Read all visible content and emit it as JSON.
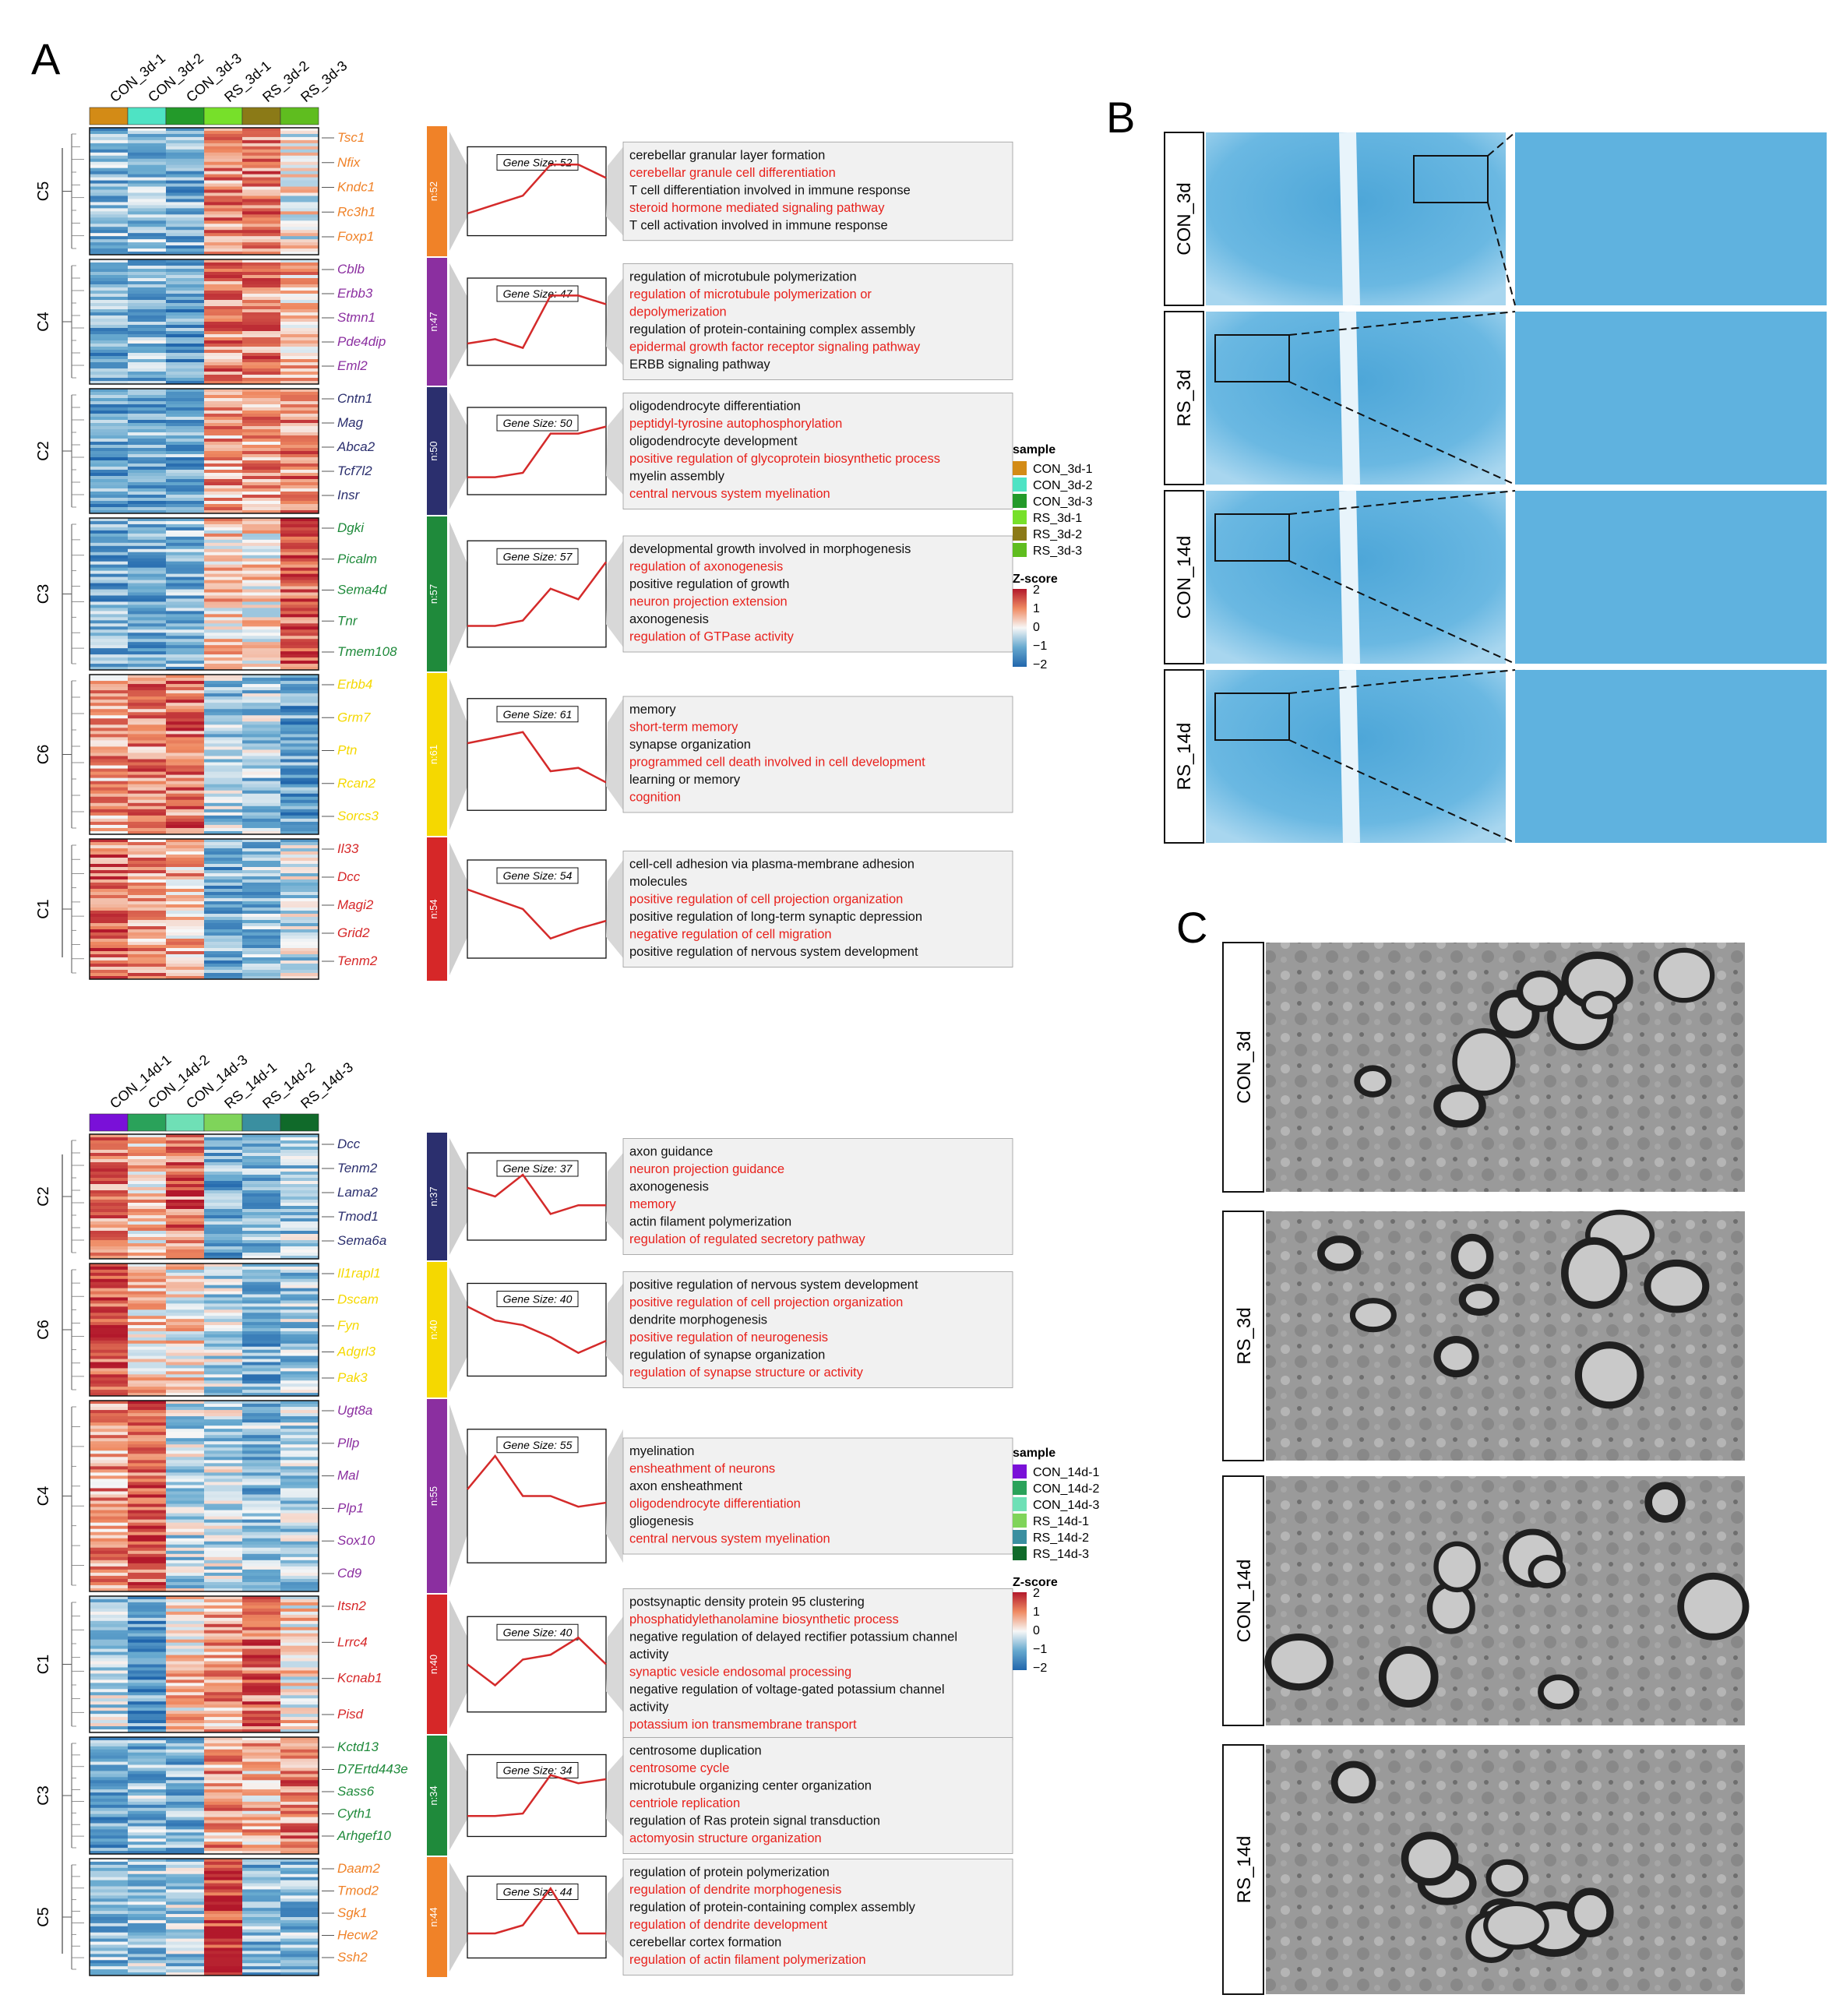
{
  "panels": {
    "A": "A",
    "B": "B",
    "C": "C"
  },
  "colors": {
    "C1": "#d62728",
    "C2": "#2b2f6e",
    "C3": "#1f8a3b",
    "C4": "#8b2fa0",
    "C5": "#f08228",
    "C6": "#f5d800",
    "go_red": "#e8211c",
    "go_black": "#111111"
  },
  "icons": {
    "panel_B": "luxol-fast-blue-histology-image",
    "panel_C": "electron-micrograph-image"
  },
  "top": {
    "columns": [
      "CON_3d-1",
      "CON_3d-2",
      "CON_3d-3",
      "RS_3d-1",
      "RS_3d-2",
      "RS_3d-3"
    ],
    "column_colors": [
      "#d38b16",
      "#4ee3c4",
      "#239a2a",
      "#77e02a",
      "#8b7a17",
      "#5fbd1f"
    ],
    "clusters": [
      {
        "id": "C5",
        "n": "n:52",
        "gene_size": "Gene Size: 52",
        "color": "#f08228",
        "genes": [
          "Tsc1",
          "Nfix",
          "Kndc1",
          "Rc3h1",
          "Foxp1"
        ],
        "profile": [
          0.25,
          0.35,
          0.45,
          0.8,
          0.8,
          0.65
        ],
        "rows": [
          0.3,
          0.3,
          0.25,
          0.75,
          0.75,
          0.5
        ],
        "go": [
          [
            "cerebellar granular layer formation",
            0
          ],
          [
            "cerebellar granule cell differentiation",
            1
          ],
          [
            "T cell differentiation involved in immune response",
            0
          ],
          [
            "steroid hormone mediated signaling pathway",
            1
          ],
          [
            "T cell activation involved in immune response",
            0
          ]
        ]
      },
      {
        "id": "C4",
        "n": "n:47",
        "gene_size": "Gene Size: 47",
        "color": "#8b2fa0",
        "genes": [
          "Cblb",
          "Erbb3",
          "Stmn1",
          "Pde4dip",
          "Eml2"
        ],
        "profile": [
          0.25,
          0.3,
          0.2,
          0.8,
          0.8,
          0.7
        ],
        "rows": [
          0.25,
          0.3,
          0.2,
          0.75,
          0.75,
          0.65
        ],
        "go": [
          [
            "regulation of microtubule polymerization",
            0
          ],
          [
            "regulation of microtubule polymerization or",
            1
          ],
          [
            "depolymerization",
            1
          ],
          [
            "regulation of protein-containing complex assembly",
            0
          ],
          [
            "epidermal growth factor receptor signaling pathway",
            1
          ],
          [
            "ERBB signaling pathway",
            0
          ]
        ]
      },
      {
        "id": "C2",
        "n": "n:50",
        "gene_size": "Gene Size: 50",
        "color": "#2b2f6e",
        "genes": [
          "Cntn1",
          "Mag",
          "Abca2",
          "Tcf7l2",
          "Insr"
        ],
        "profile": [
          0.2,
          0.2,
          0.25,
          0.7,
          0.7,
          0.78
        ],
        "rows": [
          0.2,
          0.25,
          0.25,
          0.7,
          0.7,
          0.75
        ],
        "go": [
          [
            "oligodendrocyte differentiation",
            0
          ],
          [
            "peptidyl-tyrosine autophosphorylation",
            1
          ],
          [
            "oligodendrocyte development",
            0
          ],
          [
            "positive regulation of glycoprotein biosynthetic process",
            1
          ],
          [
            "myelin assembly",
            0
          ],
          [
            "central nervous system myelination",
            1
          ]
        ]
      },
      {
        "id": "C3",
        "n": "n:57",
        "gene_size": "Gene Size: 57",
        "color": "#1f8a3b",
        "genes": [
          "Dgki",
          "Picalm",
          "Sema4d",
          "Tnr",
          "Tmem108"
        ],
        "profile": [
          0.2,
          0.2,
          0.25,
          0.55,
          0.45,
          0.8
        ],
        "rows": [
          0.25,
          0.25,
          0.3,
          0.6,
          0.55,
          0.85
        ],
        "go": [
          [
            "developmental growth involved in morphogenesis",
            0
          ],
          [
            "regulation of axonogenesis",
            1
          ],
          [
            "positive regulation of growth",
            0
          ],
          [
            "neuron projection extension",
            1
          ],
          [
            "axonogenesis",
            0
          ],
          [
            "regulation of GTPase activity",
            1
          ]
        ]
      },
      {
        "id": "C6",
        "n": "n:61",
        "gene_size": "Gene Size: 61",
        "color": "#f5d800",
        "genes": [
          "Erbb4",
          "Grm7",
          "Ptn",
          "Rcan2",
          "Sorcs3"
        ],
        "profile": [
          0.6,
          0.65,
          0.7,
          0.35,
          0.38,
          0.25
        ],
        "rows": [
          0.7,
          0.75,
          0.78,
          0.35,
          0.35,
          0.2
        ],
        "go": [
          [
            "memory",
            0
          ],
          [
            "short-term memory",
            1
          ],
          [
            "synapse organization",
            0
          ],
          [
            "programmed cell death involved in cell development",
            1
          ],
          [
            "learning or memory",
            0
          ],
          [
            "cognition",
            1
          ]
        ]
      },
      {
        "id": "C1",
        "n": "n:54",
        "gene_size": "Gene Size: 54",
        "color": "#d62728",
        "genes": [
          "Il33",
          "Dcc",
          "Magi2",
          "Grid2",
          "Tenm2"
        ],
        "profile": [
          0.7,
          0.6,
          0.5,
          0.2,
          0.3,
          0.38
        ],
        "rows": [
          0.78,
          0.72,
          0.65,
          0.25,
          0.3,
          0.4
        ],
        "go": [
          [
            "cell-cell adhesion via plasma-membrane adhesion",
            0
          ],
          [
            "molecules",
            0
          ],
          [
            "positive regulation of cell projection organization",
            1
          ],
          [
            "positive regulation of long-term synaptic depression",
            0
          ],
          [
            "negative regulation of cell migration",
            1
          ],
          [
            "positive regulation of nervous system development",
            0
          ]
        ]
      }
    ]
  },
  "bottom": {
    "columns": [
      "CON_14d-1",
      "CON_14d-2",
      "CON_14d-3",
      "RS_14d-1",
      "RS_14d-2",
      "RS_14d-3"
    ],
    "column_colors": [
      "#7a10d8",
      "#2aa25a",
      "#6fe0b6",
      "#7fd45a",
      "#3a8fa0",
      "#106a2a"
    ],
    "clusters": [
      {
        "id": "C2",
        "n": "n:37",
        "gene_size": "Gene Size: 37",
        "color": "#2b2f6e",
        "genes": [
          "Dcc",
          "Tenm2",
          "Lama2",
          "Tmod1",
          "Sema6a"
        ],
        "profile": [
          0.6,
          0.5,
          0.75,
          0.3,
          0.4,
          0.4
        ],
        "rows": [
          0.75,
          0.6,
          0.8,
          0.25,
          0.3,
          0.35
        ],
        "go": [
          [
            "axon guidance",
            0
          ],
          [
            "neuron projection guidance",
            1
          ],
          [
            "axonogenesis",
            0
          ],
          [
            "memory",
            1
          ],
          [
            "actin filament polymerization",
            0
          ],
          [
            "regulation of regulated secretory pathway",
            1
          ]
        ]
      },
      {
        "id": "C6",
        "n": "n:40",
        "gene_size": "Gene Size: 40",
        "color": "#f5d800",
        "genes": [
          "Il1rapl1",
          "Dscam",
          "Fyn",
          "Adgrl3",
          "Pak3"
        ],
        "profile": [
          0.75,
          0.6,
          0.55,
          0.42,
          0.25,
          0.38
        ],
        "rows": [
          0.85,
          0.6,
          0.55,
          0.4,
          0.25,
          0.35
        ],
        "go": [
          [
            "positive regulation of nervous system development",
            0
          ],
          [
            "positive regulation of cell projection organization",
            1
          ],
          [
            "dendrite morphogenesis",
            0
          ],
          [
            "positive regulation of neurogenesis",
            1
          ],
          [
            "regulation of synapse organization",
            0
          ],
          [
            "regulation of synapse structure or activity",
            1
          ]
        ]
      },
      {
        "id": "C4",
        "n": "n:55",
        "gene_size": "Gene Size: 55",
        "color": "#8b2fa0",
        "genes": [
          "Ugt8a",
          "Pllp",
          "Mal",
          "Plp1",
          "Sox10",
          "Cd9"
        ],
        "profile": [
          0.55,
          0.8,
          0.5,
          0.5,
          0.42,
          0.45
        ],
        "rows": [
          0.7,
          0.85,
          0.4,
          0.4,
          0.3,
          0.35
        ],
        "go": [
          [
            "myelination",
            0
          ],
          [
            "ensheathment of neurons",
            1
          ],
          [
            "axon ensheathment",
            0
          ],
          [
            "oligodendrocyte differentiation",
            1
          ],
          [
            "gliogenesis",
            0
          ],
          [
            "central nervous system myelination",
            1
          ]
        ]
      },
      {
        "id": "C1",
        "n": "n:40",
        "gene_size": "Gene Size: 40",
        "color": "#d62728",
        "genes": [
          "Itsn2",
          "Lrrc4",
          "Kcnab1",
          "Pisd"
        ],
        "profile": [
          0.5,
          0.28,
          0.55,
          0.6,
          0.78,
          0.5
        ],
        "rows": [
          0.4,
          0.2,
          0.6,
          0.7,
          0.8,
          0.55
        ],
        "go": [
          [
            "postsynaptic density protein 95 clustering",
            0
          ],
          [
            "phosphatidylethanolamine biosynthetic process",
            1
          ],
          [
            "negative regulation of delayed rectifier potassium channel",
            0
          ],
          [
            "activity",
            0
          ],
          [
            "synaptic vesicle endosomal processing",
            1
          ],
          [
            "negative regulation of voltage-gated potassium channel",
            0
          ],
          [
            "activity",
            0
          ],
          [
            "potassium ion transmembrane transport",
            1
          ]
        ]
      },
      {
        "id": "C3",
        "n": "n:34",
        "gene_size": "Gene Size: 34",
        "color": "#1f8a3b",
        "genes": [
          "Kctd13",
          "D7Ertd443e",
          "Sass6",
          "Cyth1",
          "Arhgef10"
        ],
        "profile": [
          0.25,
          0.25,
          0.28,
          0.75,
          0.65,
          0.7
        ],
        "rows": [
          0.25,
          0.3,
          0.25,
          0.7,
          0.65,
          0.75
        ],
        "go": [
          [
            "centrosome duplication",
            0
          ],
          [
            "centrosome cycle",
            1
          ],
          [
            "microtubule organizing center organization",
            0
          ],
          [
            "centriole replication",
            1
          ],
          [
            "regulation of Ras protein signal transduction",
            0
          ],
          [
            "actomyosin structure organization",
            1
          ]
        ]
      },
      {
        "id": "C5",
        "n": "n:44",
        "gene_size": "Gene Size: 44",
        "color": "#f08228",
        "genes": [
          "Daam2",
          "Tmod2",
          "Sgk1",
          "Hecw2",
          "Ssh2"
        ],
        "profile": [
          0.3,
          0.3,
          0.4,
          0.85,
          0.3,
          0.3
        ],
        "rows": [
          0.3,
          0.35,
          0.35,
          0.95,
          0.3,
          0.3
        ],
        "go": [
          [
            "regulation of protein polymerization",
            0
          ],
          [
            "regulation of dendrite morphogenesis",
            1
          ],
          [
            "regulation of protein-containing complex assembly",
            0
          ],
          [
            "regulation of dendrite development",
            1
          ],
          [
            "cerebellar cortex formation",
            0
          ],
          [
            "regulation of actin filament polymerization",
            1
          ]
        ]
      }
    ]
  },
  "legend_top": {
    "title": "sample",
    "items": [
      "CON_3d-1",
      "CON_3d-2",
      "CON_3d-3",
      "RS_3d-1",
      "RS_3d-2",
      "RS_3d-3"
    ],
    "zscore_title": "Z-score",
    "ticks": [
      "2",
      "1",
      "0",
      "−1",
      "−2"
    ]
  },
  "legend_bottom": {
    "title": "sample",
    "items": [
      "CON_14d-1",
      "CON_14d-2",
      "CON_14d-3",
      "RS_14d-1",
      "RS_14d-2",
      "RS_14d-3"
    ],
    "zscore_title": "Z-score",
    "ticks": [
      "2",
      "1",
      "0",
      "−1",
      "−2"
    ]
  },
  "panel_B_rows": [
    "CON_3d",
    "RS_3d",
    "CON_14d",
    "RS_14d"
  ],
  "panel_C_rows": [
    "CON_3d",
    "RS_3d",
    "CON_14d",
    "RS_14d"
  ]
}
